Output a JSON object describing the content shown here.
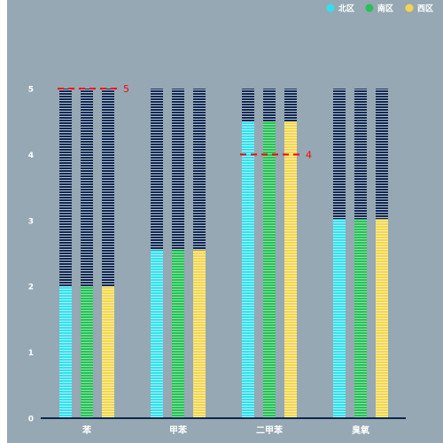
{
  "colors": {
    "panel_background": "#96a8b4",
    "axis_line": "#0c2748",
    "empty_track": "#0f2852",
    "axis_text": "#ffffff",
    "markline": "#ff0000",
    "series": [
      "#33e0ef",
      "#27c157",
      "#f3d64e"
    ]
  },
  "chart_data": {
    "type": "bar",
    "title": "",
    "xlabel": "",
    "ylabel": "",
    "categories": [
      "苯",
      "甲苯",
      "二甲苯",
      "臭氧"
    ],
    "ylim": [
      0,
      5
    ],
    "yticks": [
      "0",
      "1",
      "2",
      "3",
      "4",
      "5"
    ],
    "legend": {
      "position": "top-right",
      "entries": [
        "北区",
        "南区",
        "西区"
      ]
    },
    "series": [
      {
        "name": "北区",
        "color": "#33e0ef",
        "values": [
          2,
          2.55,
          4.5,
          3.02
        ]
      },
      {
        "name": "南区",
        "color": "#27c157",
        "values": [
          2,
          2.55,
          4.5,
          3.02
        ]
      },
      {
        "name": "西区",
        "color": "#f3d64e",
        "values": [
          2,
          2.55,
          4.5,
          3.02
        ]
      }
    ],
    "track_max": 5,
    "mark_lines": [
      {
        "category": "苯",
        "value": 5,
        "label": "5"
      },
      {
        "category": "二甲苯",
        "value": 4,
        "label": "4"
      }
    ],
    "grid": false
  }
}
